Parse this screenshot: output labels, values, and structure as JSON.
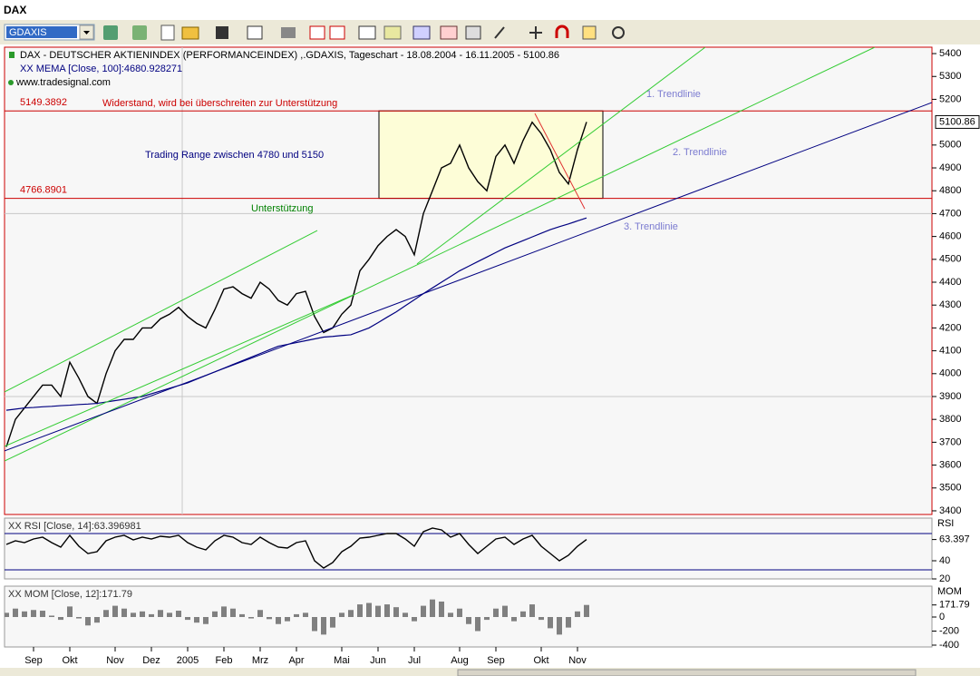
{
  "window": {
    "title": "DAX",
    "symbol": "GDAXIS"
  },
  "chart_data": [
    {
      "type": "line",
      "source": "www.tradesignal.com",
      "series": [
        {
          "name": "DAX  - DEUTSCHER AKTIENINDEX (PERFORMANCEINDEX) ,.GDAXIS, Tageschart - 18.08.2004 - 16.11.2005 - 5100.86",
          "color": "#000000",
          "values": [
            3680,
            3800,
            3850,
            3900,
            3950,
            3950,
            3900,
            4050,
            3980,
            3900,
            3870,
            4000,
            4100,
            4150,
            4150,
            4200,
            4200,
            4240,
            4260,
            4290,
            4250,
            4220,
            4200,
            4280,
            4370,
            4380,
            4350,
            4330,
            4400,
            4370,
            4320,
            4300,
            4350,
            4360,
            4250,
            4180,
            4200,
            4260,
            4300,
            4450,
            4500,
            4560,
            4600,
            4630,
            4600,
            4520,
            4700,
            4800,
            4900,
            4920,
            5000,
            4900,
            4840,
            4800,
            4950,
            5000,
            4920,
            5020,
            5100,
            5050,
            4980,
            4880,
            4830,
            4980,
            5100.86
          ]
        },
        {
          "name": "XX MEMA [Close, 100]:4680.928271",
          "color": "#000080",
          "values": [
            3840,
            3845,
            3850,
            3852,
            3855,
            3857,
            3860,
            3862,
            3865,
            3867,
            3870,
            3876,
            3882,
            3888,
            3894,
            3900,
            3912,
            3924,
            3936,
            3948,
            3960,
            3976,
            3992,
            4008,
            4024,
            4040,
            4056,
            4072,
            4088,
            4104,
            4120,
            4128,
            4136,
            4144,
            4152,
            4160,
            4163,
            4167,
            4170,
            4185,
            4200,
            4223,
            4247,
            4270,
            4297,
            4323,
            4350,
            4375,
            4400,
            4425,
            4450,
            4470,
            4490,
            4510,
            4530,
            4550,
            4566,
            4582,
            4598,
            4614,
            4630,
            4643,
            4655,
            4668,
            4680.93
          ]
        }
      ],
      "ylim": [
        3384,
        5428
      ],
      "yticks": [
        3400,
        3500,
        3600,
        3700,
        3800,
        3900,
        4000,
        4100,
        4200,
        4300,
        4400,
        4500,
        4600,
        4700,
        4800,
        4900,
        5000,
        5200,
        5300,
        5400
      ],
      "grid_y": [
        3900,
        4700
      ],
      "grid_x": [
        19.4
      ],
      "hlines": [
        {
          "value": 5149.3892,
          "color": "#cc0000"
        },
        {
          "value": 4766.8901,
          "color": "#cc0000"
        }
      ],
      "notes": [
        {
          "text": "Widerstand, wird bei überschreiten zur Unterstützung",
          "color": "#cc0000"
        },
        {
          "text": "Trading Range zwischen 4780 und 5150",
          "color": "#000080"
        },
        {
          "text": "Unterstützung",
          "color": "#008000"
        }
      ],
      "range_box": {
        "x": [
          41.1,
          65.8
        ],
        "y": [
          4766.8901,
          5149.3892
        ],
        "color": "#ffffcc"
      },
      "trendlines": [
        {
          "name": "1. Trendlinie",
          "color": "#33cc33",
          "x": [
            45.3,
            77.1
          ],
          "y": [
            4480,
            5428
          ]
        },
        {
          "name": "2. Trendlinie",
          "color": "#33cc33",
          "x": [
            -0.2,
            95.8
          ],
          "y": [
            3618,
            5428
          ]
        },
        {
          "name": "3. Trendlinie",
          "color": "#000080",
          "x": [
            -0.2,
            102.1
          ],
          "y": [
            3662,
            5186
          ]
        },
        {
          "color": "#33cc33",
          "x": [
            -0.2,
            34.3
          ],
          "y": [
            3920,
            4626
          ]
        },
        {
          "color": "#33cc33",
          "x": [
            -0.2,
            38.3
          ],
          "y": [
            3682,
            4345
          ]
        },
        {
          "color": "#e03030",
          "x": [
            58.3,
            63.8
          ],
          "y": [
            5138,
            4721
          ]
        }
      ]
    },
    {
      "type": "line",
      "label": "RSI",
      "series": [
        {
          "name": "XX RSI [Close, 14]:63.396981",
          "color": "#000000",
          "values": [
            58,
            62,
            60,
            64,
            66,
            60,
            55,
            68,
            56,
            48,
            50,
            62,
            66,
            68,
            63,
            66,
            64,
            67,
            66,
            68,
            60,
            55,
            52,
            62,
            68,
            66,
            60,
            58,
            66,
            60,
            55,
            54,
            60,
            62,
            40,
            32,
            38,
            50,
            56,
            65,
            66,
            68,
            70,
            70,
            64,
            56,
            72,
            76,
            74,
            66,
            70,
            58,
            48,
            56,
            64,
            66,
            58,
            64,
            68,
            56,
            48,
            40,
            46,
            56,
            63.396981
          ]
        }
      ],
      "ylim": [
        20,
        87
      ],
      "yticks": [
        {
          "value": 63.396981,
          "label": "63.397"
        },
        40,
        20
      ],
      "levels": [
        70,
        30
      ]
    },
    {
      "type": "bar",
      "label": "MOM",
      "categories": [
        null,
        null,
        null,
        "Sep",
        null,
        null,
        null,
        "Okt",
        null,
        null,
        null,
        null,
        "Nov",
        null,
        null,
        null,
        "Dez",
        null,
        null,
        null,
        "2005",
        null,
        null,
        null,
        "Feb",
        null,
        null,
        null,
        "Mrz",
        null,
        null,
        null,
        "Apr",
        null,
        null,
        null,
        null,
        "Mai",
        null,
        null,
        null,
        "Jun",
        null,
        null,
        null,
        "Jul",
        null,
        null,
        null,
        null,
        "Aug",
        null,
        null,
        null,
        "Sep",
        null,
        null,
        null,
        null,
        "Okt",
        null,
        null,
        null,
        "Nov",
        null
      ],
      "series": [
        {
          "name": "XX MOM [Close, 12]:171.79",
          "color": "#808080",
          "values": [
            60,
            120,
            80,
            100,
            90,
            20,
            -40,
            150,
            -20,
            -120,
            -80,
            100,
            160,
            120,
            60,
            80,
            40,
            100,
            60,
            90,
            -40,
            -80,
            -100,
            80,
            150,
            120,
            40,
            -20,
            100,
            -30,
            -100,
            -60,
            40,
            60,
            -200,
            -250,
            -150,
            60,
            100,
            180,
            200,
            160,
            180,
            140,
            60,
            -60,
            160,
            250,
            220,
            60,
            120,
            -100,
            -200,
            -40,
            120,
            160,
            -60,
            80,
            180,
            -40,
            -160,
            -250,
            -150,
            80,
            171.79
          ]
        }
      ],
      "ylim": [
        -426,
        439
      ],
      "yticks": [
        171.79,
        0,
        -200,
        -400
      ]
    }
  ]
}
